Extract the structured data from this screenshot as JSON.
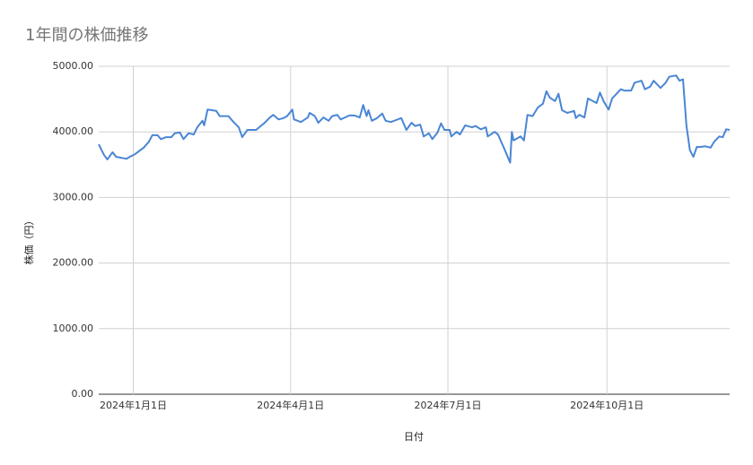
{
  "chart_data": {
    "type": "line",
    "title": "1年間の株価推移",
    "x_label": "日付",
    "y_label": "株価（円）",
    "x": [
      "2023-12-12",
      "2023-12-15",
      "2023-12-17",
      "2023-12-20",
      "2023-12-22",
      "2023-12-28",
      "2023-12-30",
      "2024-01-02",
      "2024-01-07",
      "2024-01-10",
      "2024-01-12",
      "2024-01-15",
      "2024-01-17",
      "2024-01-20",
      "2024-01-23",
      "2024-01-25",
      "2024-01-28",
      "2024-01-30",
      "2024-02-02",
      "2024-02-05",
      "2024-02-07",
      "2024-02-10",
      "2024-02-11",
      "2024-02-13",
      "2024-02-18",
      "2024-02-20",
      "2024-02-25",
      "2024-02-28",
      "2024-03-02",
      "2024-03-04",
      "2024-03-07",
      "2024-03-12",
      "2024-03-17",
      "2024-03-20",
      "2024-03-22",
      "2024-03-25",
      "2024-03-28",
      "2024-03-30",
      "2024-04-02",
      "2024-04-03",
      "2024-04-07",
      "2024-04-11",
      "2024-04-12",
      "2024-04-15",
      "2024-04-17",
      "2024-04-20",
      "2024-04-23",
      "2024-04-25",
      "2024-04-28",
      "2024-04-30",
      "2024-05-05",
      "2024-05-08",
      "2024-05-11",
      "2024-05-13",
      "2024-05-15",
      "2024-05-16",
      "2024-05-18",
      "2024-05-21",
      "2024-05-24",
      "2024-05-26",
      "2024-05-29",
      "2024-06-01",
      "2024-06-04",
      "2024-06-07",
      "2024-06-10",
      "2024-06-12",
      "2024-06-15",
      "2024-06-17",
      "2024-06-20",
      "2024-06-22",
      "2024-06-25",
      "2024-06-27",
      "2024-06-29",
      "2024-07-02",
      "2024-07-03",
      "2024-07-06",
      "2024-07-08",
      "2024-07-11",
      "2024-07-15",
      "2024-07-17",
      "2024-07-20",
      "2024-07-23",
      "2024-07-24",
      "2024-07-28",
      "2024-07-30",
      "2024-08-03",
      "2024-08-06",
      "2024-08-07",
      "2024-08-08",
      "2024-08-12",
      "2024-08-14",
      "2024-08-16",
      "2024-08-19",
      "2024-08-22",
      "2024-08-25",
      "2024-08-27",
      "2024-08-29",
      "2024-09-01",
      "2024-09-03",
      "2024-09-05",
      "2024-09-08",
      "2024-09-12",
      "2024-09-13",
      "2024-09-15",
      "2024-09-18",
      "2024-09-20",
      "2024-09-25",
      "2024-09-27",
      "2024-09-29",
      "2024-10-02",
      "2024-10-04",
      "2024-10-09",
      "2024-10-11",
      "2024-10-15",
      "2024-10-17",
      "2024-10-21",
      "2024-10-23",
      "2024-10-26",
      "2024-10-28",
      "2024-11-01",
      "2024-11-04",
      "2024-11-06",
      "2024-11-10",
      "2024-11-12",
      "2024-11-14",
      "2024-11-16",
      "2024-11-18",
      "2024-11-20",
      "2024-11-22",
      "2024-11-24",
      "2024-11-27",
      "2024-11-30",
      "2024-12-02",
      "2024-12-05",
      "2024-12-07",
      "2024-12-09",
      "2024-12-11"
    ],
    "series": [
      {
        "name": "株価",
        "color": "#4a86d4",
        "values": [
          3810,
          3650,
          3580,
          3690,
          3620,
          3590,
          3620,
          3660,
          3760,
          3850,
          3950,
          3950,
          3890,
          3920,
          3920,
          3980,
          3990,
          3890,
          3980,
          3960,
          4070,
          4170,
          4100,
          4340,
          4320,
          4240,
          4240,
          4150,
          4070,
          3920,
          4030,
          4030,
          4140,
          4220,
          4260,
          4190,
          4210,
          4240,
          4340,
          4190,
          4150,
          4220,
          4290,
          4240,
          4140,
          4220,
          4170,
          4240,
          4260,
          4190,
          4250,
          4250,
          4220,
          4410,
          4240,
          4330,
          4170,
          4210,
          4280,
          4170,
          4150,
          4180,
          4210,
          4030,
          4140,
          4090,
          4110,
          3930,
          3980,
          3890,
          3990,
          4130,
          4030,
          4030,
          3930,
          4000,
          3960,
          4100,
          4070,
          4090,
          4040,
          4070,
          3930,
          4000,
          3960,
          3720,
          3530,
          4000,
          3870,
          3930,
          3870,
          4260,
          4240,
          4370,
          4430,
          4620,
          4520,
          4470,
          4580,
          4330,
          4290,
          4320,
          4210,
          4260,
          4220,
          4510,
          4440,
          4600,
          4470,
          4340,
          4510,
          4650,
          4630,
          4630,
          4750,
          4780,
          4650,
          4690,
          4780,
          4670,
          4750,
          4840,
          4860,
          4780,
          4800,
          4100,
          3720,
          3620,
          3770,
          3770,
          3780,
          3760,
          3850,
          3930,
          3920,
          4040,
          4030
        ]
      }
    ],
    "xlim": [
      "2023-12-12",
      "2024-12-11"
    ],
    "xticks": [
      {
        "value": "2024-01-01",
        "label": "2024年1月1日"
      },
      {
        "value": "2024-04-01",
        "label": "2024年4月1日"
      },
      {
        "value": "2024-07-01",
        "label": "2024年7月1日"
      },
      {
        "value": "2024-10-01",
        "label": "2024年10月1日"
      }
    ],
    "ylim": [
      0,
      5000
    ],
    "yticks": [
      {
        "value": 0,
        "label": "0.00"
      },
      {
        "value": 1000,
        "label": "1000.00"
      },
      {
        "value": 2000,
        "label": "2000.00"
      },
      {
        "value": 3000,
        "label": "3000.00"
      },
      {
        "value": 4000,
        "label": "4000.00"
      },
      {
        "value": 5000,
        "label": "5000.00"
      }
    ],
    "grid": true
  }
}
